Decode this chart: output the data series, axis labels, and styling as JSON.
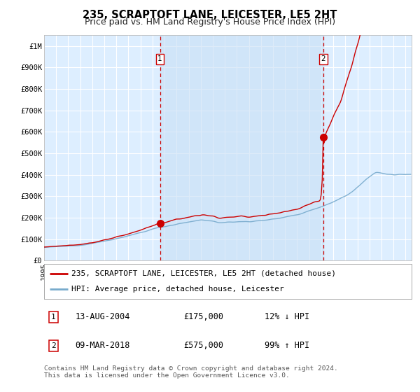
{
  "title": "235, SCRAPTOFT LANE, LEICESTER, LE5 2HT",
  "subtitle": "Price paid vs. HM Land Registry's House Price Index (HPI)",
  "xlim_start": 1995.0,
  "xlim_end": 2025.5,
  "ylim": [
    0,
    1050000
  ],
  "yticks": [
    0,
    100000,
    200000,
    300000,
    400000,
    500000,
    600000,
    700000,
    800000,
    900000,
    1000000
  ],
  "ytick_labels": [
    "£0",
    "£100K",
    "£200K",
    "£300K",
    "£400K",
    "£500K",
    "£600K",
    "£700K",
    "£800K",
    "£900K",
    "£1M"
  ],
  "transaction1_date": 2004.617,
  "transaction1_price": 175000,
  "transaction2_date": 2018.183,
  "transaction2_price": 575000,
  "bg_color": "#ddeeff",
  "line_red_color": "#cc0000",
  "line_blue_color": "#77aacc",
  "grid_color": "#ffffff",
  "legend_label_red": "235, SCRAPTOFT LANE, LEICESTER, LE5 2HT (detached house)",
  "legend_label_blue": "HPI: Average price, detached house, Leicester",
  "table_row1": [
    "1",
    "13-AUG-2004",
    "£175,000",
    "12% ↓ HPI"
  ],
  "table_row2": [
    "2",
    "09-MAR-2018",
    "£575,000",
    "99% ↑ HPI"
  ],
  "footnote": "Contains HM Land Registry data © Crown copyright and database right 2024.\nThis data is licensed under the Open Government Licence v3.0.",
  "title_fontsize": 10.5,
  "subtitle_fontsize": 9,
  "tick_fontsize": 7.5,
  "legend_fontsize": 8
}
